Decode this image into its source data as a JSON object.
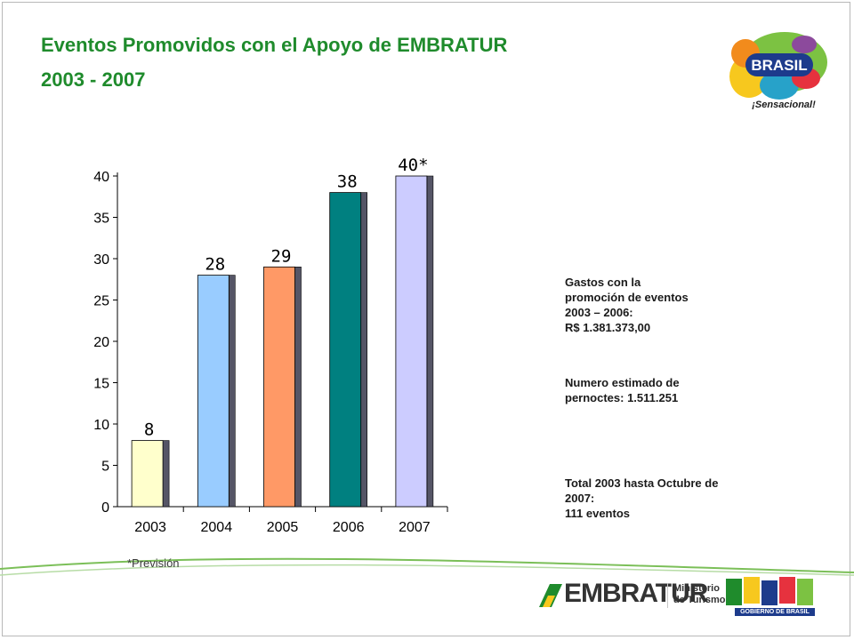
{
  "slide": {
    "title_line1": "Eventos Promovidos con el Apoyo de EMBRATUR",
    "title_line2": "2003 - 2007",
    "logo_text": "BRASIL",
    "tagline": "¡Sensacional!",
    "stats": {
      "gastos_line1": "Gastos  con  la",
      "gastos_line2": "promoción  de eventos",
      "gastos_line3": "2003 – 2006:",
      "gastos_line4": "R$ 1.381.373,00",
      "pernoctes_line1": "Numero  estimado  de",
      "pernoctes_line2": "pernoctes:  1.511.251",
      "total_line1": "Total 2003 hasta Octubre de 2007:",
      "total_line2": "111 eventos"
    },
    "footnote": "*Previsión",
    "footer": {
      "embratur": "EMBRATUR",
      "ministerio_line1": "Ministerio",
      "ministerio_line2": "de Turismo",
      "gov_text": "GOBIERNO DE BRASIL"
    }
  },
  "chart_data": {
    "type": "bar",
    "categories": [
      "2003",
      "2004",
      "2005",
      "2006",
      "2007"
    ],
    "values": [
      8,
      28,
      29,
      38,
      40
    ],
    "data_labels": [
      "8",
      "28",
      "29",
      "38",
      "40*"
    ],
    "colors": [
      "#ffffcc",
      "#99ccff",
      "#ff9966",
      "#008080",
      "#ccccff"
    ],
    "ylim": [
      0,
      40
    ],
    "yticks": [
      0,
      5,
      10,
      15,
      20,
      25,
      30,
      35,
      40
    ],
    "title": "",
    "xlabel": "",
    "ylabel": "",
    "grid": false
  },
  "colors": {
    "title_green": "#1f8b2c",
    "bar_edge": "#000000",
    "bar_shadow": "#555566"
  }
}
